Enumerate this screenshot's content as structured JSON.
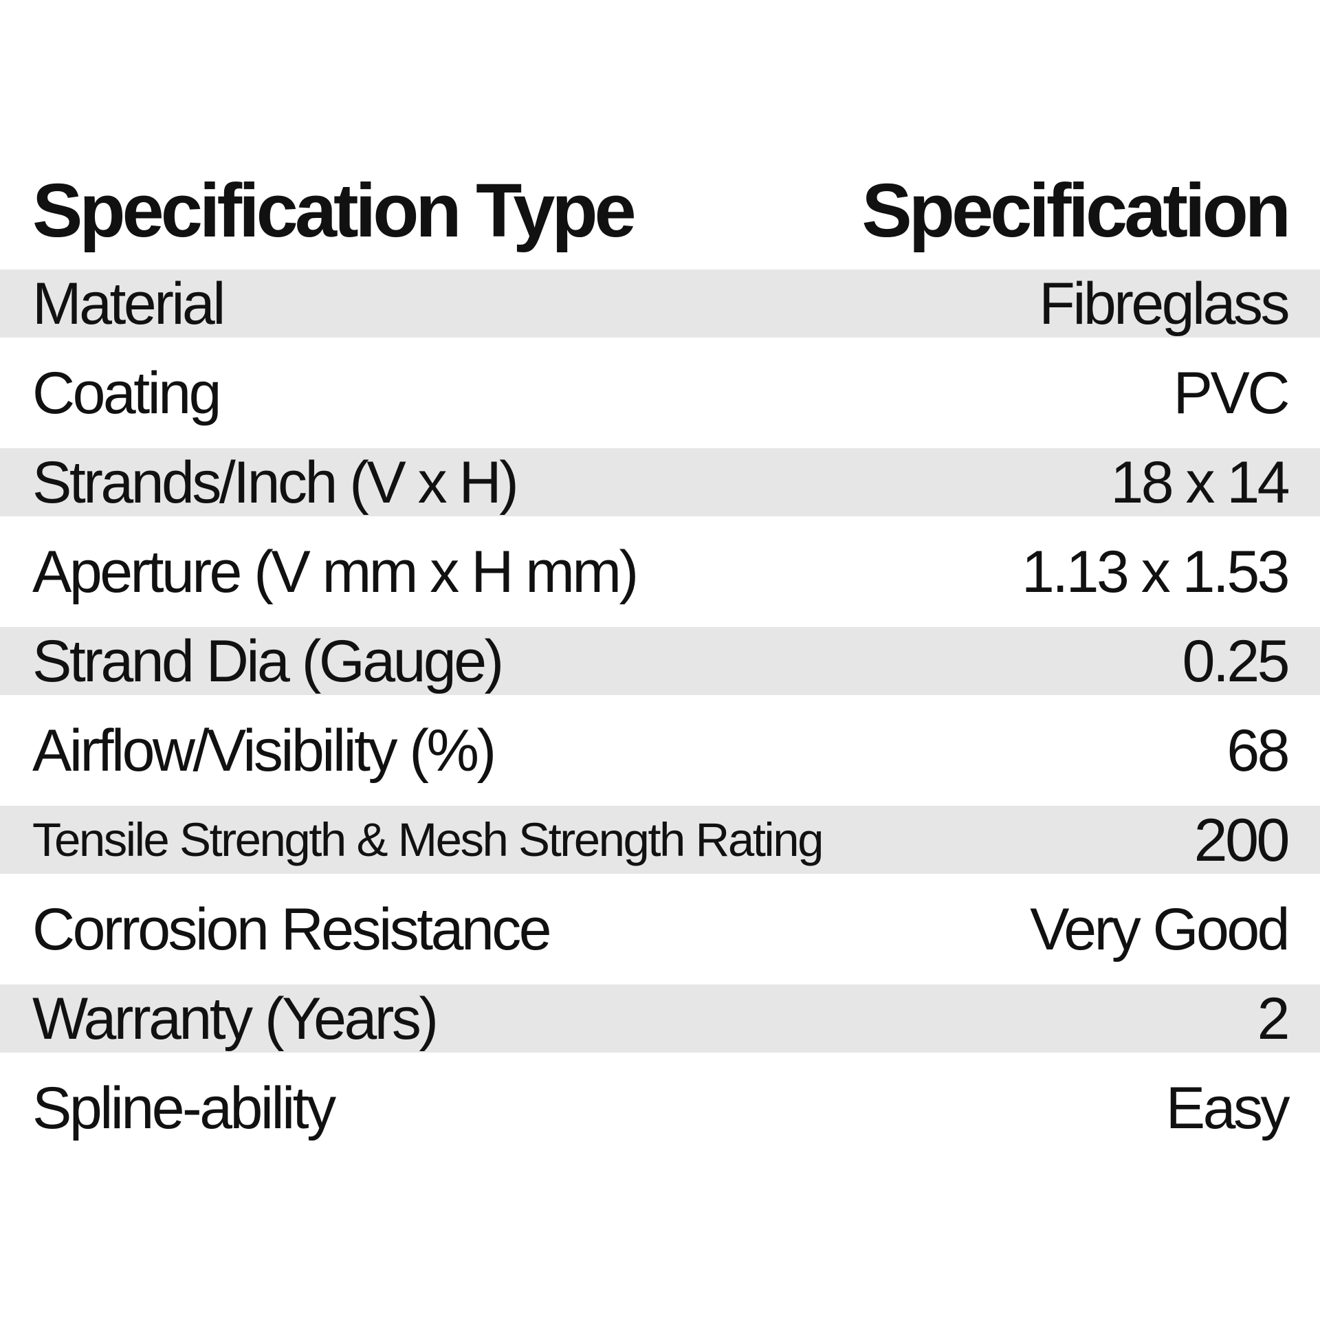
{
  "table": {
    "headers": [
      "Specification Type",
      "Specification"
    ],
    "rows": [
      {
        "label": "Material",
        "value": "Fibreglass",
        "shaded": true
      },
      {
        "label": "Coating",
        "value": "PVC",
        "shaded": false
      },
      {
        "label": "Strands/Inch (V x H)",
        "value": "18 x 14",
        "shaded": true
      },
      {
        "label": "Aperture (V mm x H mm)",
        "value": "1.13 x 1.53",
        "shaded": false
      },
      {
        "label": "Strand Dia (Gauge)",
        "value": "0.25",
        "shaded": true
      },
      {
        "label": "Airflow/Visibility (%)",
        "value": "68",
        "shaded": false
      },
      {
        "label": "Tensile Strength & Mesh Strength Rating",
        "value": "200",
        "shaded": true
      },
      {
        "label": "Corrosion Resistance",
        "value": "Very Good",
        "shaded": false
      },
      {
        "label": "Warranty (Years)",
        "value": "2",
        "shaded": true
      },
      {
        "label": "Spline-ability",
        "value": "Easy",
        "shaded": false
      }
    ]
  },
  "colors": {
    "row_shade": "#e6e6e6",
    "text": "#111111",
    "background": "#ffffff"
  },
  "chart_data": {
    "type": "table",
    "title": "",
    "columns": [
      "Specification Type",
      "Specification"
    ],
    "rows": [
      [
        "Material",
        "Fibreglass"
      ],
      [
        "Coating",
        "PVC"
      ],
      [
        "Strands/Inch (V x H)",
        "18 x 14"
      ],
      [
        "Aperture (V mm x H mm)",
        "1.13 x 1.53"
      ],
      [
        "Strand Dia (Gauge)",
        "0.25"
      ],
      [
        "Airflow/Visibility (%)",
        "68"
      ],
      [
        "Tensile Strength & Mesh Strength Rating",
        "200"
      ],
      [
        "Corrosion Resistance",
        "Very Good"
      ],
      [
        "Warranty (Years)",
        "2"
      ],
      [
        "Spline-ability",
        "Easy"
      ]
    ],
    "layout_hints": {
      "alternating_row_shading": "rows 1,3,5,7,9 shaded light gray starting with Material",
      "value_alignment": "right",
      "header_style": "bold, no background"
    }
  }
}
